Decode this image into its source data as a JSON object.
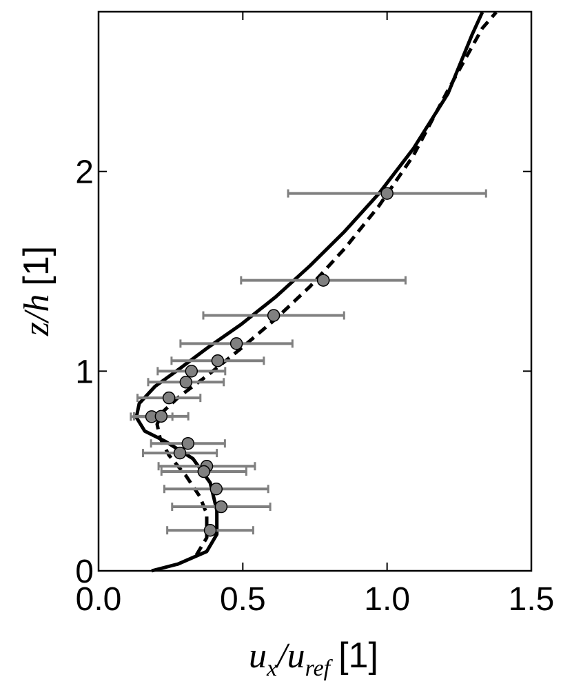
{
  "chart_data": {
    "type": "line",
    "xlabel": [
      "u",
      "x",
      "/",
      "u",
      "ref",
      "[1]"
    ],
    "ylabel": [
      "z/h",
      "[1]"
    ],
    "xlim": [
      0,
      1.5
    ],
    "ylim": [
      0,
      2.8
    ],
    "xticks": [
      {
        "value": 0,
        "label": "0.0"
      },
      {
        "value": 0.5,
        "label": "0.5"
      },
      {
        "value": 1,
        "label": "1.0"
      },
      {
        "value": 1.5,
        "label": "1.5"
      }
    ],
    "yticks": [
      0,
      1,
      2
    ],
    "series": [
      {
        "style": "solid",
        "color": "#000000",
        "x": [
          0.184,
          0.275,
          0.375,
          0.41,
          0.41,
          0.387,
          0.327,
          0.232,
          0.16,
          0.131,
          0.141,
          0.196,
          0.279,
          0.375,
          0.494,
          0.614,
          0.733,
          0.853,
          0.972,
          1.091,
          1.211,
          1.294,
          1.33
        ],
        "values": [
          0,
          0.034,
          0.097,
          0.183,
          0.303,
          0.441,
          0.562,
          0.648,
          0.7,
          0.769,
          0.838,
          0.924,
          1.01,
          1.114,
          1.234,
          1.372,
          1.528,
          1.7,
          1.89,
          2.114,
          2.39,
          2.683,
          2.797
        ]
      },
      {
        "style": "dashed",
        "color": "#000000",
        "x": [
          0.339,
          0.375,
          0.375,
          0.351,
          0.303,
          0.244,
          0.213,
          0.203,
          0.22,
          0.279,
          0.375,
          0.494,
          0.614,
          0.733,
          0.853,
          0.972,
          1.091,
          1.211,
          1.33,
          1.378
        ],
        "values": [
          0.079,
          0.166,
          0.286,
          0.372,
          0.476,
          0.579,
          0.666,
          0.734,
          0.793,
          0.872,
          0.976,
          1.114,
          1.262,
          1.424,
          1.614,
          1.828,
          2.079,
          2.407,
          2.717,
          2.797
        ]
      },
      {
        "style": "points",
        "color": "#808080",
        "errcolor": "#808080",
        "x": [
          1.0,
          0.779,
          0.607,
          0.478,
          0.413,
          0.322,
          0.303,
          0.244,
          0.184,
          0.217,
          0.31,
          0.282,
          0.375,
          0.365,
          0.408,
          0.425,
          0.387
        ],
        "values": [
          1.89,
          1.455,
          1.279,
          1.138,
          1.052,
          1.0,
          0.945,
          0.866,
          0.772,
          0.774,
          0.638,
          0.59,
          0.524,
          0.497,
          0.41,
          0.321,
          0.203
        ],
        "xerr": [
          0.343,
          0.285,
          0.244,
          0.194,
          0.16,
          0.117,
          0.131,
          0.109,
          0.072,
          0.094,
          0.128,
          0.128,
          0.167,
          0.147,
          0.18,
          0.17,
          0.149
        ]
      }
    ]
  }
}
